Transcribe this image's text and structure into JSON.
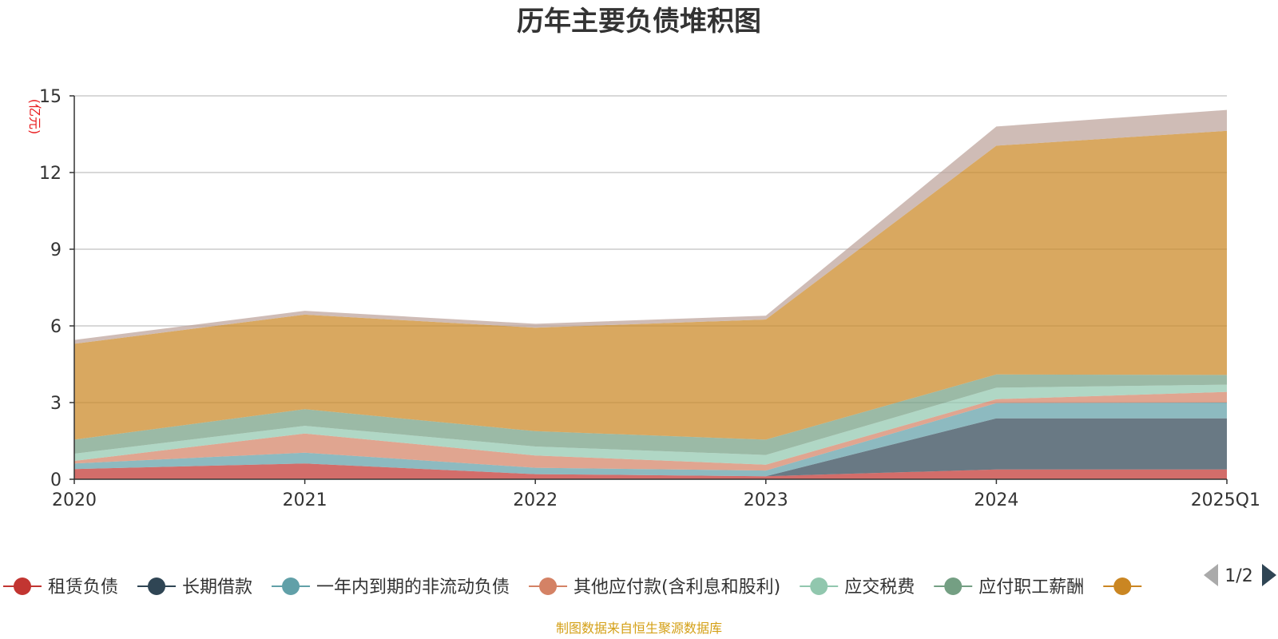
{
  "chart_data": {
    "type": "area",
    "stacked": true,
    "title": "历年主要负债堆积图",
    "unit_label": "(亿元)",
    "x": [
      "2020",
      "2021",
      "2022",
      "2023",
      "2024",
      "2025Q1"
    ],
    "ylim": [
      0,
      15
    ],
    "yticks": [
      0,
      3,
      6,
      9,
      12,
      15
    ],
    "grid": true,
    "series": [
      {
        "name": "租赁负债",
        "color": "#c23531",
        "legend": true,
        "values": [
          0.4,
          0.62,
          0.2,
          0.12,
          0.38,
          0.38
        ]
      },
      {
        "name": "长期借款",
        "color": "#2f4554",
        "legend": true,
        "values": [
          0,
          0,
          0,
          0,
          2.0,
          2.0
        ]
      },
      {
        "name": "一年内到期的非流动负债",
        "color": "#61a0a8",
        "legend": true,
        "values": [
          0.22,
          0.42,
          0.25,
          0.22,
          0.6,
          0.62
        ]
      },
      {
        "name": "其他应付款(含利息和股利)",
        "color": "#d48265",
        "legend": true,
        "values": [
          0.1,
          0.75,
          0.48,
          0.23,
          0.15,
          0.42
        ]
      },
      {
        "name": "应交税费",
        "color": "#91c7ae",
        "legend": true,
        "values": [
          0.28,
          0.3,
          0.35,
          0.38,
          0.45,
          0.28
        ]
      },
      {
        "name": "应付职工薪酬",
        "color": "#749f83",
        "legend": true,
        "values": [
          0.55,
          0.65,
          0.6,
          0.6,
          0.52,
          0.38
        ]
      },
      {
        "name": "",
        "color": "#ca8622",
        "legend": true,
        "values": [
          3.75,
          3.7,
          4.05,
          4.7,
          8.95,
          9.55
        ]
      },
      {
        "name": "",
        "color": "#bda29a",
        "legend": false,
        "values": [
          0.15,
          0.15,
          0.15,
          0.15,
          0.75,
          0.82
        ]
      }
    ],
    "legend": {
      "position": "bottom",
      "page": "1/2"
    },
    "source_note": "制图数据来自恒生聚源数据库"
  }
}
